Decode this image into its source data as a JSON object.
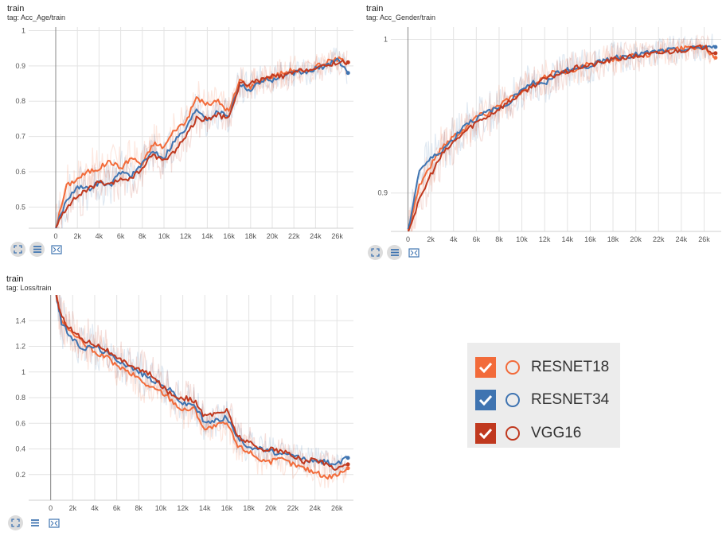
{
  "colors": {
    "resnet18": "#f26b3a",
    "resnet34": "#3f74b1",
    "vgg16": "#c0391f"
  },
  "panels": [
    {
      "title": "train",
      "tag": "tag: Acc_Age/train"
    },
    {
      "title": "train",
      "tag": "tag: Acc_Gender/train"
    },
    {
      "title": "train",
      "tag": "tag: Loss/train"
    }
  ],
  "toolbar_icons": [
    "fit-domain-icon",
    "toggle-log-icon",
    "download-icon"
  ],
  "legend": [
    {
      "key": "resnet18",
      "label": "RESNET18",
      "checked": true
    },
    {
      "key": "resnet34",
      "label": "RESNET34",
      "checked": true
    },
    {
      "key": "vgg16",
      "label": "VGG16",
      "checked": true
    }
  ],
  "chart_data": [
    {
      "type": "line",
      "title": "train",
      "tag": "Acc_Age/train",
      "xlim": [
        -2500,
        27500
      ],
      "ylim": [
        0.44,
        1.01
      ],
      "xticks": [
        "0",
        "2k",
        "4k",
        "6k",
        "8k",
        "10k",
        "12k",
        "14k",
        "16k",
        "18k",
        "20k",
        "22k",
        "24k",
        "26k"
      ],
      "yticks": [
        "0.5",
        "0.6",
        "0.7",
        "0.8",
        "0.9",
        "1"
      ],
      "ytick_values": [
        0.5,
        0.6,
        0.7,
        0.8,
        0.9,
        1.0
      ],
      "grid": true,
      "series": [
        {
          "name": "RESNET18",
          "x": [
            0,
            1000,
            2000,
            3000,
            4000,
            5000,
            6000,
            7000,
            8000,
            9000,
            10000,
            11000,
            12000,
            13000,
            14000,
            15000,
            16000,
            17000,
            18000,
            19000,
            20000,
            21000,
            22000,
            23000,
            24000,
            25000,
            26000,
            27000
          ],
          "y": [
            0.44,
            0.56,
            0.58,
            0.6,
            0.61,
            0.63,
            0.61,
            0.64,
            0.62,
            0.68,
            0.67,
            0.72,
            0.74,
            0.81,
            0.79,
            0.8,
            0.77,
            0.86,
            0.84,
            0.86,
            0.87,
            0.88,
            0.89,
            0.88,
            0.9,
            0.91,
            0.92,
            0.91
          ]
        },
        {
          "name": "RESNET34",
          "x": [
            0,
            1000,
            2000,
            3000,
            4000,
            5000,
            6000,
            7000,
            8000,
            9000,
            10000,
            11000,
            12000,
            13000,
            14000,
            15000,
            16000,
            17000,
            18000,
            19000,
            20000,
            21000,
            22000,
            23000,
            24000,
            25000,
            26000,
            27000
          ],
          "y": [
            0.44,
            0.52,
            0.56,
            0.55,
            0.57,
            0.56,
            0.6,
            0.59,
            0.62,
            0.66,
            0.64,
            0.69,
            0.72,
            0.78,
            0.75,
            0.77,
            0.76,
            0.85,
            0.83,
            0.86,
            0.86,
            0.87,
            0.88,
            0.88,
            0.89,
            0.9,
            0.92,
            0.88
          ]
        },
        {
          "name": "VGG16",
          "x": [
            0,
            1000,
            2000,
            3000,
            4000,
            5000,
            6000,
            7000,
            8000,
            9000,
            10000,
            11000,
            12000,
            13000,
            14000,
            15000,
            16000,
            17000,
            18000,
            19000,
            20000,
            21000,
            22000,
            23000,
            24000,
            25000,
            26000,
            27000
          ],
          "y": [
            0.44,
            0.5,
            0.53,
            0.55,
            0.57,
            0.56,
            0.58,
            0.58,
            0.61,
            0.65,
            0.63,
            0.66,
            0.7,
            0.75,
            0.75,
            0.76,
            0.75,
            0.85,
            0.85,
            0.86,
            0.87,
            0.87,
            0.88,
            0.89,
            0.89,
            0.9,
            0.91,
            0.91
          ]
        }
      ]
    },
    {
      "type": "line",
      "title": "train",
      "tag": "Acc_Gender/train",
      "xlim": [
        -1500,
        27500
      ],
      "ylim": [
        0.875,
        1.008
      ],
      "xticks": [
        "0",
        "2k",
        "4k",
        "6k",
        "8k",
        "10k",
        "12k",
        "14k",
        "16k",
        "18k",
        "20k",
        "22k",
        "24k",
        "26k"
      ],
      "yticks": [
        "0.9",
        "1"
      ],
      "ytick_values": [
        0.9,
        1.0
      ],
      "grid": true,
      "series": [
        {
          "name": "RESNET18",
          "x": [
            0,
            1000,
            2000,
            3000,
            4000,
            5000,
            6000,
            7000,
            8000,
            9000,
            10000,
            11000,
            12000,
            13000,
            14000,
            15000,
            16000,
            17000,
            18000,
            19000,
            20000,
            21000,
            22000,
            23000,
            24000,
            25000,
            26000,
            27000
          ],
          "y": [
            0.875,
            0.905,
            0.918,
            0.93,
            0.937,
            0.942,
            0.95,
            0.952,
            0.958,
            0.962,
            0.965,
            0.97,
            0.975,
            0.98,
            0.978,
            0.982,
            0.984,
            0.985,
            0.987,
            0.988,
            0.99,
            0.99,
            0.992,
            0.993,
            0.994,
            0.995,
            0.995,
            0.988
          ]
        },
        {
          "name": "RESNET34",
          "x": [
            0,
            1000,
            2000,
            3000,
            4000,
            5000,
            6000,
            7000,
            8000,
            9000,
            10000,
            11000,
            12000,
            13000,
            14000,
            15000,
            16000,
            17000,
            18000,
            19000,
            20000,
            21000,
            22000,
            23000,
            24000,
            25000,
            26000,
            27000
          ],
          "y": [
            0.875,
            0.915,
            0.922,
            0.928,
            0.935,
            0.945,
            0.948,
            0.953,
            0.955,
            0.96,
            0.968,
            0.972,
            0.97,
            0.978,
            0.98,
            0.981,
            0.983,
            0.986,
            0.988,
            0.989,
            0.99,
            0.991,
            0.992,
            0.993,
            0.993,
            0.994,
            0.995,
            0.995
          ]
        },
        {
          "name": "VGG16",
          "x": [
            0,
            1000,
            2000,
            3000,
            4000,
            5000,
            6000,
            7000,
            8000,
            9000,
            10000,
            11000,
            12000,
            13000,
            14000,
            15000,
            16000,
            17000,
            18000,
            19000,
            20000,
            21000,
            22000,
            23000,
            24000,
            25000,
            26000,
            27000
          ],
          "y": [
            0.875,
            0.895,
            0.912,
            0.925,
            0.933,
            0.94,
            0.946,
            0.95,
            0.955,
            0.96,
            0.965,
            0.97,
            0.974,
            0.977,
            0.979,
            0.982,
            0.983,
            0.985,
            0.987,
            0.988,
            0.989,
            0.99,
            0.991,
            0.992,
            0.993,
            0.994,
            0.995,
            0.991
          ]
        }
      ]
    },
    {
      "type": "line",
      "title": "train",
      "tag": "Loss/train",
      "xlim": [
        -2000,
        27500
      ],
      "ylim": [
        0.0,
        1.6
      ],
      "xticks": [
        "0",
        "2k",
        "4k",
        "6k",
        "8k",
        "10k",
        "12k",
        "14k",
        "16k",
        "18k",
        "20k",
        "22k",
        "24k",
        "26k"
      ],
      "yticks": [
        "0.2",
        "0.4",
        "0.6",
        "0.8",
        "1",
        "1.2",
        "1.4"
      ],
      "ytick_values": [
        0.2,
        0.4,
        0.6,
        0.8,
        1.0,
        1.2,
        1.4
      ],
      "grid": true,
      "series": [
        {
          "name": "RESNET18",
          "x": [
            500,
            1000,
            2000,
            3000,
            4000,
            5000,
            6000,
            7000,
            8000,
            9000,
            10000,
            11000,
            12000,
            13000,
            14000,
            15000,
            16000,
            17000,
            18000,
            19000,
            20000,
            21000,
            22000,
            23000,
            24000,
            25000,
            26000,
            27000
          ],
          "y": [
            1.6,
            1.4,
            1.3,
            1.22,
            1.15,
            1.12,
            1.05,
            1.0,
            0.95,
            0.88,
            0.85,
            0.78,
            0.7,
            0.72,
            0.55,
            0.58,
            0.6,
            0.42,
            0.38,
            0.32,
            0.3,
            0.32,
            0.28,
            0.25,
            0.22,
            0.18,
            0.2,
            0.25
          ]
        },
        {
          "name": "RESNET34",
          "x": [
            500,
            1000,
            2000,
            3000,
            4000,
            5000,
            6000,
            7000,
            8000,
            9000,
            10000,
            11000,
            12000,
            13000,
            14000,
            15000,
            16000,
            17000,
            18000,
            19000,
            20000,
            21000,
            22000,
            23000,
            24000,
            25000,
            26000,
            27000
          ],
          "y": [
            1.6,
            1.38,
            1.25,
            1.18,
            1.2,
            1.15,
            1.1,
            1.05,
            1.0,
            0.95,
            0.9,
            0.85,
            0.75,
            0.75,
            0.6,
            0.62,
            0.65,
            0.48,
            0.42,
            0.4,
            0.38,
            0.35,
            0.35,
            0.32,
            0.3,
            0.3,
            0.28,
            0.33
          ]
        },
        {
          "name": "VGG16",
          "x": [
            500,
            1000,
            2000,
            3000,
            4000,
            5000,
            6000,
            7000,
            8000,
            9000,
            10000,
            11000,
            12000,
            13000,
            14000,
            15000,
            16000,
            17000,
            18000,
            19000,
            20000,
            21000,
            22000,
            23000,
            24000,
            25000,
            26000,
            27000
          ],
          "y": [
            1.6,
            1.42,
            1.32,
            1.25,
            1.22,
            1.18,
            1.1,
            1.07,
            1.02,
            0.98,
            0.9,
            0.82,
            0.8,
            0.78,
            0.65,
            0.68,
            0.7,
            0.5,
            0.45,
            0.4,
            0.4,
            0.38,
            0.35,
            0.3,
            0.32,
            0.28,
            0.25,
            0.28
          ]
        }
      ]
    }
  ]
}
